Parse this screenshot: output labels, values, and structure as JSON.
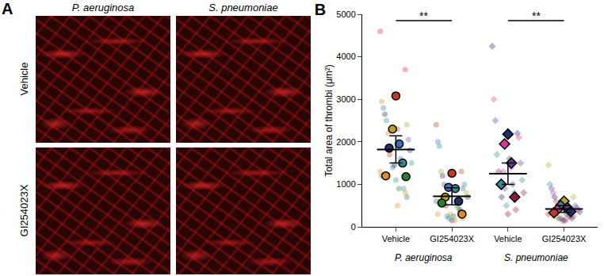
{
  "panel_a": {
    "label": "A",
    "columns": [
      "P. aeruginosa",
      "S. pneumoniae"
    ],
    "rows": [
      "Vehicle",
      "GI254023X"
    ]
  },
  "chart_data": {
    "type": "scatter",
    "title": "B",
    "y_label": "Total area of thrombi (μm²)",
    "categories": [
      "Vehicle",
      "GI254023X",
      "Vehicle",
      "GI254023X"
    ],
    "groups": [
      {
        "name": "P. aeruginosa",
        "categories": [
          0,
          1
        ]
      },
      {
        "name": "S. pneumoniae",
        "categories": [
          2,
          3
        ]
      }
    ],
    "ylim": [
      0,
      5000
    ],
    "yticks": [
      0,
      1000,
      2000,
      3000,
      4000,
      5000
    ],
    "mean": [
      1820,
      720,
      1250,
      420
    ],
    "sem": [
      320,
      200,
      250,
      80
    ],
    "marker": [
      "circle",
      "circle",
      "diamond",
      "diamond"
    ],
    "animals": [
      [
        {
          "color": "#c0392b",
          "mean": 3080,
          "points": [
            4600,
            3700,
            2300,
            1700
          ]
        },
        {
          "color": "#b8a22a",
          "mean": 2300,
          "points": [
            2950,
            2400,
            2000,
            1900
          ]
        },
        {
          "color": "#3b6fb6",
          "mean": 1950,
          "points": [
            2800,
            2050,
            1600,
            1400
          ]
        },
        {
          "color": "#1f2f6b",
          "mean": 1850,
          "points": [
            2650,
            1800,
            1500,
            1450
          ]
        },
        {
          "color": "#2f8f8f",
          "mean": 1500,
          "points": [
            2500,
            1500,
            900,
            1100
          ]
        },
        {
          "color": "#e08a2a",
          "mean": 1200,
          "points": [
            2200,
            1300,
            800,
            500
          ]
        },
        {
          "color": "#2e7d32",
          "mean": 1180,
          "points": [
            1900,
            1200,
            700,
            900
          ]
        }
      ],
      [
        {
          "color": "#c0392b",
          "mean": 1260,
          "points": [
            2400,
            1300,
            900,
            500
          ]
        },
        {
          "color": "#3b6fb6",
          "mean": 930,
          "points": [
            2000,
            900,
            600,
            250
          ]
        },
        {
          "color": "#2f8f8f",
          "mean": 900,
          "points": [
            1900,
            1000,
            500,
            200
          ]
        },
        {
          "color": "#b8a22a",
          "mean": 700,
          "points": [
            1300,
            800,
            450,
            300
          ]
        },
        {
          "color": "#1f2f6b",
          "mean": 600,
          "points": [
            1200,
            700,
            400,
            150
          ]
        },
        {
          "color": "#2e7d32",
          "mean": 560,
          "points": [
            1000,
            600,
            350,
            250
          ]
        },
        {
          "color": "#e08a2a",
          "mean": 300,
          "points": [
            500,
            300,
            200,
            150
          ]
        }
      ],
      [
        {
          "color": "#1f2f6b",
          "mean": 2180,
          "points": [
            4250,
            2200,
            1600,
            700
          ]
        },
        {
          "color": "#d03aa0",
          "mean": 1950,
          "points": [
            3000,
            2100,
            1400,
            1300
          ]
        },
        {
          "color": "#6a3a9a",
          "mean": 1500,
          "points": [
            2500,
            1500,
            1000,
            900
          ]
        },
        {
          "color": "#2f8f8f",
          "mean": 1000,
          "points": [
            1700,
            1100,
            800,
            500
          ]
        },
        {
          "color": "#8b1a3a",
          "mean": 700,
          "points": [
            1300,
            800,
            400,
            300
          ]
        }
      ],
      [
        {
          "color": "#b8a22a",
          "mean": 600,
          "points": [
            1450,
            700,
            300,
            200
          ]
        },
        {
          "color": "#2f8f8f",
          "mean": 500,
          "points": [
            1000,
            500,
            300,
            200
          ]
        },
        {
          "color": "#6a3a9a",
          "mean": 450,
          "points": [
            900,
            450,
            250,
            200
          ]
        },
        {
          "color": "#d03aa0",
          "mean": 400,
          "points": [
            800,
            400,
            250,
            150
          ]
        },
        {
          "color": "#1f2f6b",
          "mean": 360,
          "points": [
            700,
            350,
            200,
            150
          ]
        },
        {
          "color": "#c0392b",
          "mean": 330,
          "points": [
            600,
            300,
            250,
            150
          ]
        }
      ]
    ],
    "significance": [
      {
        "between": [
          0,
          1
        ],
        "y": 4850,
        "label": "**"
      },
      {
        "between": [
          2,
          3
        ],
        "y": 4850,
        "label": "**"
      }
    ]
  }
}
